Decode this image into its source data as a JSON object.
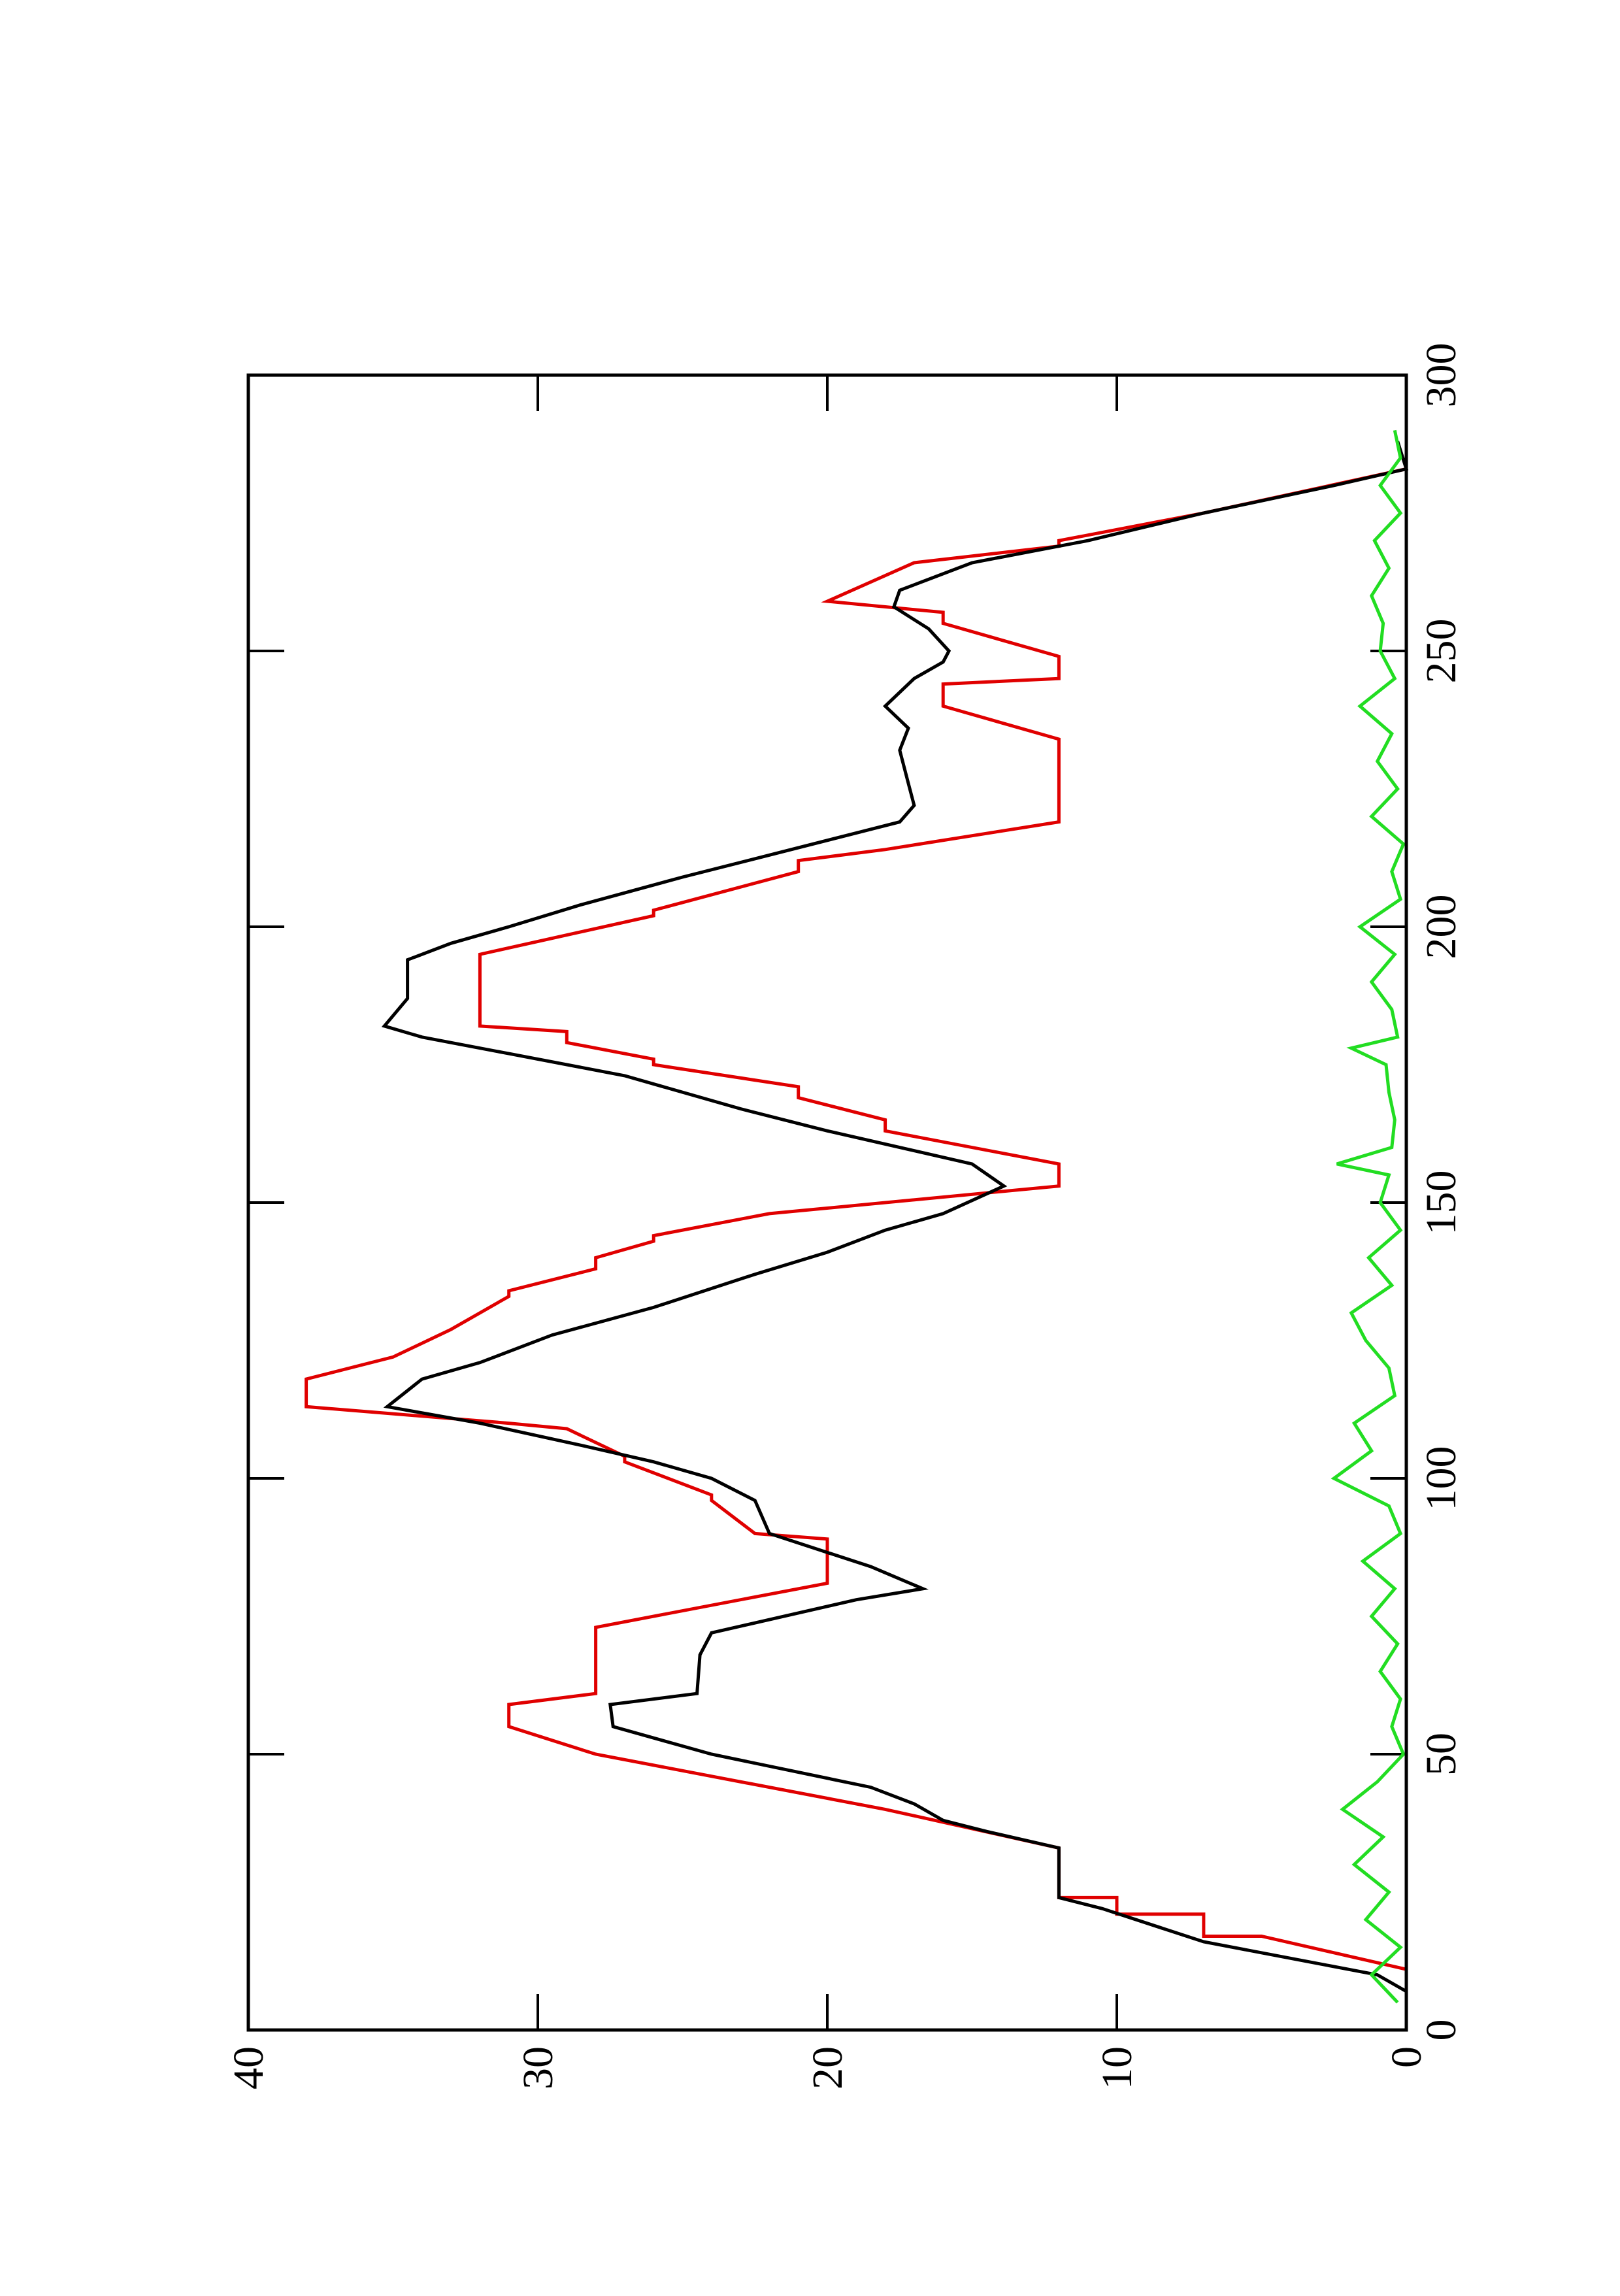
{
  "chart_data": {
    "type": "line",
    "xlim": [
      0,
      300
    ],
    "xticks": [
      0,
      50,
      100,
      150,
      200,
      250,
      300
    ],
    "ylim": [
      0,
      40
    ],
    "yticks": [
      0,
      10,
      20,
      30,
      40
    ],
    "series": [
      {
        "color": "#e00000",
        "x": [
          11,
          17,
          17,
          21,
          21,
          24,
          24,
          33,
          40,
          50,
          55,
          59,
          61,
          73,
          81,
          89,
          90,
          96,
          97,
          103,
          104,
          109,
          110,
          113,
          118,
          122,
          127,
          133,
          134,
          138,
          140,
          143,
          144,
          148,
          153,
          157,
          163,
          165,
          169,
          171,
          175,
          176,
          179,
          181,
          182,
          195,
          202,
          203,
          210,
          212,
          214,
          219,
          234,
          240,
          244,
          245,
          249,
          255,
          257,
          259,
          266,
          269,
          270,
          272,
          275,
          283
        ],
        "values": [
          0,
          5,
          7,
          7,
          10,
          10,
          12,
          12,
          18,
          28,
          31,
          31,
          28,
          28,
          20,
          20,
          22.5,
          24,
          24,
          27,
          27,
          29,
          31,
          38,
          38,
          35,
          33,
          31,
          31,
          28,
          28,
          26,
          26,
          22,
          12,
          12,
          18,
          18,
          21,
          21,
          26,
          26,
          29,
          29,
          32,
          32,
          26,
          26,
          21,
          21,
          18,
          12,
          12,
          16,
          16,
          12,
          12,
          16,
          16,
          20,
          17,
          12,
          12,
          10,
          7,
          0
        ]
      },
      {
        "color": "#000000",
        "x": [
          7,
          10,
          16,
          22,
          24,
          33,
          36,
          38,
          41,
          44,
          50,
          55,
          59,
          61,
          68,
          72,
          78,
          80,
          84,
          90,
          96,
          100,
          103,
          106,
          110,
          113,
          118,
          121,
          126,
          131,
          137,
          141,
          145,
          148,
          153,
          157,
          163,
          167,
          173,
          177,
          180,
          182,
          187,
          194,
          197,
          200,
          204,
          209,
          213,
          219,
          222,
          226,
          232,
          236,
          240,
          245,
          248,
          250,
          254,
          258,
          261,
          266,
          270,
          275,
          280,
          283,
          288
        ],
        "values": [
          0,
          1,
          7,
          10.5,
          12,
          12,
          14.5,
          16,
          17,
          18.5,
          24,
          27.4,
          27.5,
          24.5,
          24.4,
          24,
          19,
          16.7,
          18.5,
          22,
          22.5,
          24,
          26,
          28.5,
          32,
          35.2,
          34,
          32,
          29.5,
          26,
          22.5,
          20,
          18,
          16,
          13.9,
          15,
          20,
          23,
          27,
          31,
          34,
          35.3,
          34.5,
          34.5,
          33,
          31,
          28.5,
          25,
          22,
          17.5,
          17,
          17.2,
          17.5,
          17.2,
          18,
          17,
          16,
          15.8,
          16.5,
          17.7,
          17.5,
          15,
          11,
          7,
          2.5,
          0,
          0.3
        ]
      },
      {
        "color": "#22dd22",
        "x": [
          5,
          10,
          15,
          20,
          25,
          30,
          35,
          40,
          45,
          50,
          55,
          60,
          65,
          70,
          75,
          80,
          85,
          90,
          95,
          100,
          105,
          110,
          115,
          120,
          125,
          130,
          135,
          140,
          145,
          150,
          155,
          157,
          160,
          165,
          170,
          175,
          178,
          180,
          185,
          190,
          195,
          200,
          205,
          210,
          215,
          220,
          225,
          230,
          235,
          240,
          245,
          250,
          255,
          260,
          265,
          270,
          275,
          280,
          285,
          290
        ],
        "values": [
          0.3,
          1.2,
          0.2,
          1.4,
          0.6,
          1.8,
          0.8,
          2.2,
          1.0,
          0.1,
          0.5,
          0.2,
          0.9,
          0.3,
          1.2,
          0.4,
          1.5,
          0.2,
          0.6,
          2.5,
          1.2,
          1.8,
          0.4,
          0.6,
          1.4,
          1.9,
          0.5,
          1.3,
          0.2,
          0.9,
          0.6,
          2.4,
          0.5,
          0.4,
          0.6,
          0.7,
          1.9,
          0.3,
          0.5,
          1.2,
          0.4,
          1.6,
          0.2,
          0.5,
          0.1,
          1.2,
          0.3,
          1.0,
          0.5,
          1.6,
          0.4,
          0.9,
          0.8,
          1.2,
          0.6,
          1.1,
          0.2,
          0.9,
          0.2,
          0.4
        ]
      }
    ]
  }
}
